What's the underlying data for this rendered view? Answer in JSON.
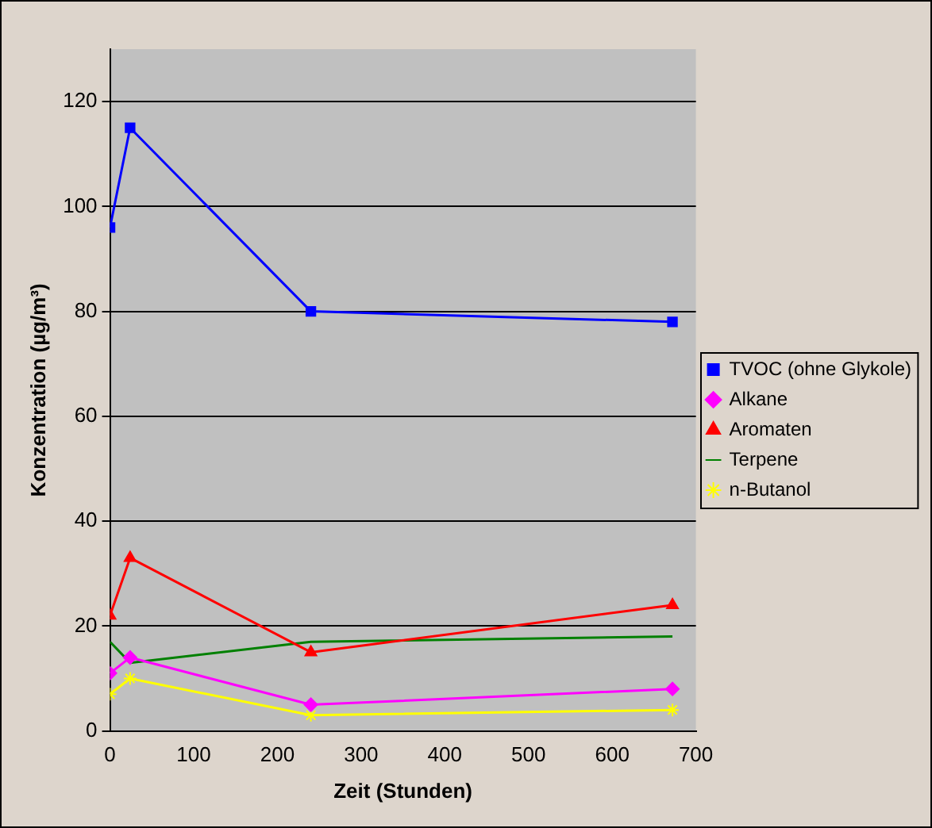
{
  "chart_data": {
    "type": "line",
    "xlabel": "Zeit (Stunden)",
    "ylabel": "Konzentration (µg/m³)",
    "x": [
      0,
      24,
      240,
      672
    ],
    "series": [
      {
        "name": "TVOC (ohne Glykole)",
        "color": "#0000ff",
        "marker": "square",
        "values": [
          96,
          115,
          80,
          78
        ]
      },
      {
        "name": "Alkane",
        "color": "#ff00ff",
        "marker": "diamond",
        "values": [
          11,
          14,
          5,
          8
        ]
      },
      {
        "name": "Aromaten",
        "color": "#ff0000",
        "marker": "triangle",
        "values": [
          22,
          33,
          15,
          24
        ]
      },
      {
        "name": "Terpene",
        "color": "#008000",
        "marker": "none",
        "values": [
          17,
          13,
          17,
          18
        ]
      },
      {
        "name": "n-Butanol",
        "color": "#ffff00",
        "marker": "cross",
        "values": [
          7,
          10,
          3,
          4
        ]
      }
    ],
    "xlim": [
      0,
      700
    ],
    "xticks": [
      0,
      100,
      200,
      300,
      400,
      500,
      600,
      700
    ],
    "ylim": [
      0,
      130
    ],
    "yticks": [
      0,
      20,
      40,
      60,
      80,
      100,
      120
    ],
    "grid": "y",
    "legend": "right"
  }
}
